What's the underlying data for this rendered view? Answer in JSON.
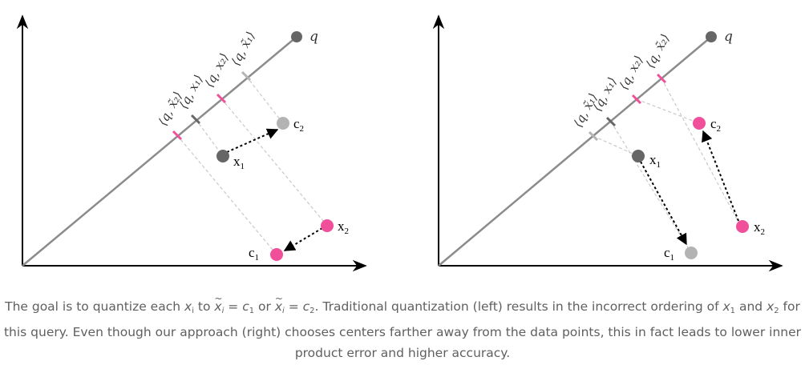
{
  "colors": {
    "dark_gray": "#666666",
    "light_gray": "#b3b3b3",
    "pink": "#f0509a",
    "axis": "#000000",
    "query_line": "#8c8c8c",
    "dashed_projection": "#c9c9c9"
  },
  "icons": [
    "arrow-head"
  ],
  "left_panel": {
    "labels": {
      "q": "q",
      "x1": "x",
      "x1_sub": "1",
      "x2": "x",
      "x2_sub": "2",
      "c1": "c",
      "c1_sub": "1",
      "c2": "c",
      "c2_sub": "2"
    },
    "projection_labels": [
      "⟨q, x̃₂⟩",
      "⟨q, x₁⟩",
      "⟨q, x₂⟩",
      "⟨q, x̃₁⟩"
    ]
  },
  "right_panel": {
    "labels": {
      "q": "q",
      "x1": "x",
      "x1_sub": "1",
      "x2": "x",
      "x2_sub": "2",
      "c1": "c",
      "c1_sub": "1",
      "c2": "c",
      "c2_sub": "2"
    },
    "projection_labels": [
      "⟨q, x̃₁⟩",
      "⟨q, x₁⟩",
      "⟨q, x₂⟩",
      "⟨q, x̃₂⟩"
    ]
  },
  "caption": {
    "p1": "The goal is to quantize each ",
    "xi": "x",
    "i1": "i",
    "p2": " to ",
    "xt1": "x",
    "i2": "i",
    "p3": " = ",
    "c1": "c",
    "one1": "1",
    "p4": " or ",
    "xt2": "x",
    "i3": "i",
    "p5": " = ",
    "c2": "c",
    "two1": "2",
    "p6": ". Traditional quantization (left) results in the incorrect ordering of ",
    "x1": "x",
    "one2": "1",
    "p7": " and ",
    "x2": "x",
    "two2": "2",
    "p8": " for this query. Even though our approach (right) chooses centers farther away from the data points, this in fact leads to lower inner product error and higher accuracy."
  }
}
